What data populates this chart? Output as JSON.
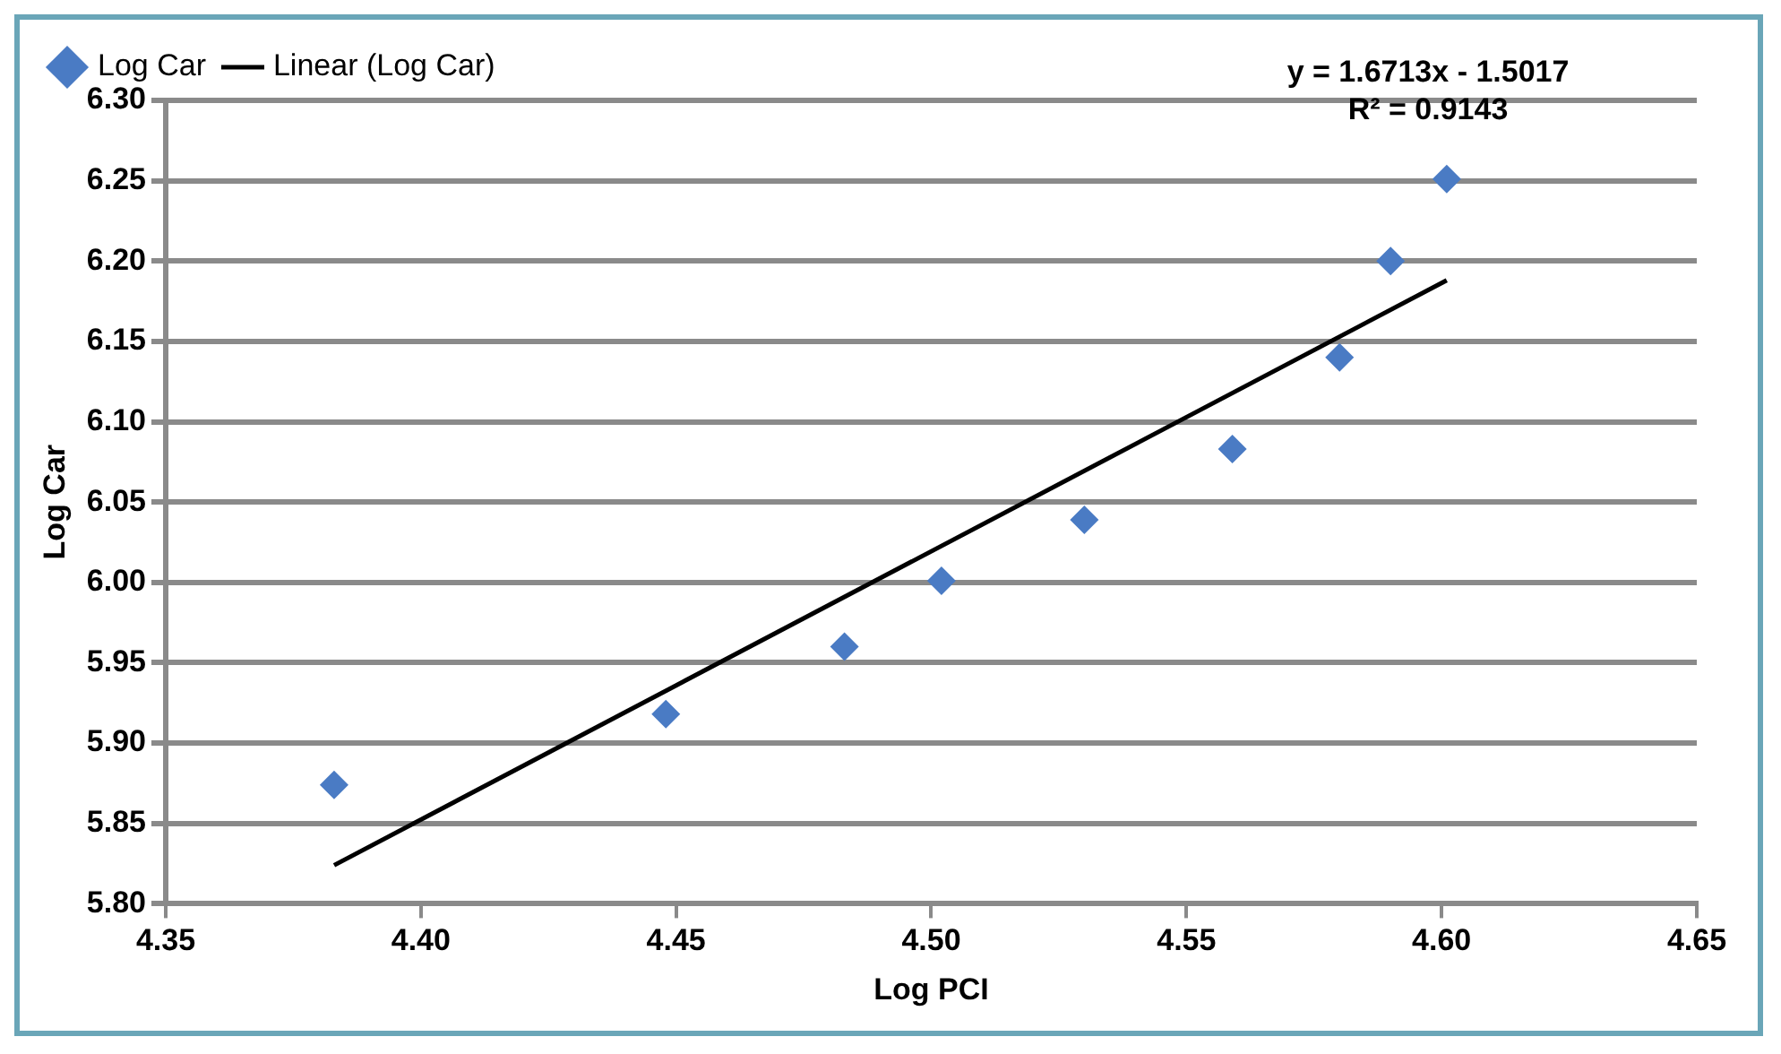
{
  "chart_data": {
    "type": "scatter",
    "xlabel": "Log PCI",
    "ylabel": "Log Car",
    "xlim": [
      4.35,
      4.65
    ],
    "xticks": [
      {
        "value": 4.35,
        "label": "4.35"
      },
      {
        "value": 4.4,
        "label": "4.40"
      },
      {
        "value": 4.45,
        "label": "4.45"
      },
      {
        "value": 4.5,
        "label": "4.50"
      },
      {
        "value": 4.55,
        "label": "4.55"
      },
      {
        "value": 4.6,
        "label": "4.60"
      },
      {
        "value": 4.65,
        "label": "4.65"
      }
    ],
    "ylim": [
      5.8,
      6.3
    ],
    "yticks": [
      {
        "value": 5.8,
        "label": "5.80"
      },
      {
        "value": 5.85,
        "label": "5.85"
      },
      {
        "value": 5.9,
        "label": "5.90"
      },
      {
        "value": 5.95,
        "label": "5.95"
      },
      {
        "value": 6.0,
        "label": "6.00"
      },
      {
        "value": 6.05,
        "label": "6.05"
      },
      {
        "value": 6.1,
        "label": "6.10"
      },
      {
        "value": 6.15,
        "label": "6.15"
      },
      {
        "value": 6.2,
        "label": "6.20"
      },
      {
        "value": 6.25,
        "label": "6.25"
      },
      {
        "value": 6.3,
        "label": "6.30"
      }
    ],
    "grid": "y",
    "legend": "top left",
    "marker": "diamond",
    "annotations": [
      "y = 1.6713x - 1.5017",
      "R² = 0.9143"
    ],
    "series": [
      {
        "name": "Log Car",
        "color": "#4a7bc4",
        "x": [
          4.383,
          4.448,
          4.483,
          4.502,
          4.53,
          4.559,
          4.58,
          4.59,
          4.601
        ],
        "values": [
          5.874,
          5.918,
          5.96,
          6.001,
          6.039,
          6.083,
          6.14,
          6.2,
          6.251
        ]
      },
      {
        "name": "Linear (Log Car)",
        "type": "line",
        "color": "#000000",
        "marker": "none",
        "line_style": "solid",
        "x": [
          4.383,
          4.601
        ],
        "values": [
          5.824,
          6.188
        ]
      }
    ]
  }
}
